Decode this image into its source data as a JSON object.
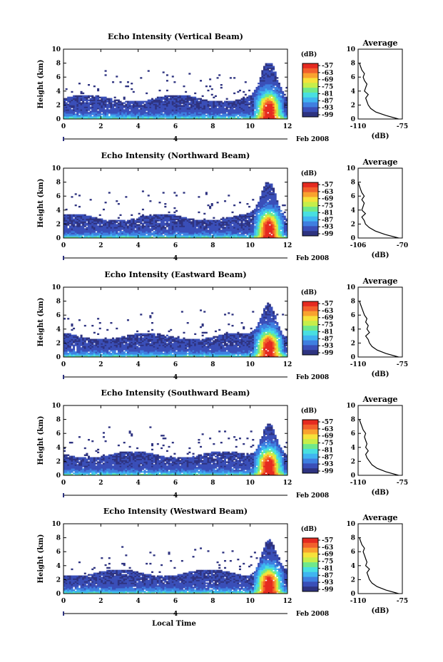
{
  "figure": {
    "xlabel": "Local Time",
    "date_label": "Feb 2008",
    "date_marker": "4"
  },
  "chart_data": [
    {
      "type": "heatmap",
      "title": "Echo Intensity (Vertical Beam)",
      "ylabel": "Height (km)",
      "xlim": [
        0,
        12
      ],
      "ylim": [
        0,
        10
      ],
      "xticks": [
        "0",
        "2",
        "4",
        "6",
        "8",
        "10",
        "12"
      ],
      "yticks": [
        "0",
        "2",
        "4",
        "6",
        "8",
        "10"
      ],
      "colorbar": {
        "label": "(dB)",
        "ticks": [
          "-57",
          "-63",
          "-69",
          "-75",
          "-81",
          "-87",
          "-93",
          "-99"
        ]
      },
      "average": {
        "title": "Average",
        "xlabel": "(dB)",
        "xticks": [
          "-110",
          "-75"
        ],
        "xlim": [
          -110,
          -75
        ],
        "yticks": [
          "0",
          "2",
          "4",
          "6",
          "8",
          "10"
        ],
        "profile": [
          [
            -78,
            0
          ],
          [
            -88,
            0.5
          ],
          [
            -96,
            1
          ],
          [
            -100,
            1.5
          ],
          [
            -102,
            2
          ],
          [
            -103,
            2.5
          ],
          [
            -104,
            3
          ],
          [
            -102,
            3.5
          ],
          [
            -105,
            4
          ],
          [
            -104,
            4.5
          ],
          [
            -103,
            5
          ],
          [
            -105,
            5.5
          ],
          [
            -106,
            6
          ],
          [
            -105,
            6.5
          ],
          [
            -107,
            7
          ],
          [
            -108,
            7.5
          ],
          [
            -109,
            8
          ]
        ]
      }
    },
    {
      "type": "heatmap",
      "title": "Echo Intensity (Northward Beam)",
      "ylabel": "Height (km)",
      "xlim": [
        0,
        12
      ],
      "ylim": [
        0,
        10
      ],
      "xticks": [
        "0",
        "2",
        "4",
        "6",
        "8",
        "10",
        "12"
      ],
      "yticks": [
        "0",
        "2",
        "4",
        "6",
        "8",
        "10"
      ],
      "colorbar": {
        "label": "(dB)",
        "ticks": [
          "-57",
          "-63",
          "-69",
          "-75",
          "-81",
          "-87",
          "-93",
          "-99"
        ]
      },
      "average": {
        "title": "Average",
        "xlabel": "(dB)",
        "xticks": [
          "-106",
          "-70"
        ],
        "xlim": [
          -106,
          -70
        ],
        "yticks": [
          "0",
          "2",
          "4",
          "6",
          "8",
          "10"
        ],
        "profile": [
          [
            -73,
            0
          ],
          [
            -84,
            0.5
          ],
          [
            -92,
            1
          ],
          [
            -97,
            1.5
          ],
          [
            -100,
            2
          ],
          [
            -101,
            2.5
          ],
          [
            -103,
            3
          ],
          [
            -100,
            3.5
          ],
          [
            -103,
            4
          ],
          [
            -102,
            4.5
          ],
          [
            -101,
            5
          ],
          [
            -103,
            5.5
          ],
          [
            -101,
            6
          ],
          [
            -103,
            6.5
          ],
          [
            -104,
            7
          ],
          [
            -105,
            7.5
          ],
          [
            -106,
            8
          ]
        ]
      }
    },
    {
      "type": "heatmap",
      "title": "Echo Intensity (Eastward Beam)",
      "ylabel": "Height (km)",
      "xlim": [
        0,
        12
      ],
      "ylim": [
        0,
        10
      ],
      "xticks": [
        "0",
        "2",
        "4",
        "6",
        "8",
        "10",
        "12"
      ],
      "yticks": [
        "0",
        "2",
        "4",
        "6",
        "8",
        "10"
      ],
      "colorbar": {
        "label": "(dB)",
        "ticks": [
          "-57",
          "-63",
          "-69",
          "-75",
          "-81",
          "-87",
          "-93",
          "-99"
        ]
      },
      "average": {
        "title": "Average",
        "xlabel": "(dB)",
        "xticks": [
          "-110",
          "-75"
        ],
        "xlim": [
          -110,
          -75
        ],
        "yticks": [
          "0",
          "2",
          "4",
          "6",
          "8",
          "10"
        ],
        "profile": [
          [
            -78,
            0
          ],
          [
            -88,
            0.5
          ],
          [
            -95,
            1
          ],
          [
            -99,
            1.5
          ],
          [
            -101,
            2
          ],
          [
            -102,
            2.5
          ],
          [
            -104,
            3
          ],
          [
            -101,
            3.5
          ],
          [
            -103,
            4
          ],
          [
            -102,
            4.5
          ],
          [
            -104,
            5
          ],
          [
            -103,
            5.5
          ],
          [
            -105,
            6
          ],
          [
            -106,
            6.5
          ],
          [
            -107,
            7
          ],
          [
            -108,
            7.5
          ],
          [
            -109,
            8
          ]
        ]
      }
    },
    {
      "type": "heatmap",
      "title": "Echo Intensity (Southward Beam)",
      "ylabel": "Height (km)",
      "xlim": [
        0,
        12
      ],
      "ylim": [
        0,
        10
      ],
      "xticks": [
        "0",
        "2",
        "4",
        "6",
        "8",
        "10",
        "12"
      ],
      "yticks": [
        "0",
        "2",
        "4",
        "6",
        "8",
        "10"
      ],
      "colorbar": {
        "label": "(dB)",
        "ticks": [
          "-57",
          "-63",
          "-69",
          "-75",
          "-81",
          "-87",
          "-93",
          "-99"
        ]
      },
      "average": {
        "title": "Average",
        "xlabel": "(dB)",
        "xticks": [
          "-110",
          "-75"
        ],
        "xlim": [
          -110,
          -75
        ],
        "yticks": [
          "0",
          "2",
          "4",
          "6",
          "8",
          "10"
        ],
        "profile": [
          [
            -78,
            0
          ],
          [
            -88,
            0.5
          ],
          [
            -95,
            1
          ],
          [
            -99,
            1.5
          ],
          [
            -101,
            2
          ],
          [
            -103,
            2.5
          ],
          [
            -104,
            3
          ],
          [
            -102,
            3.5
          ],
          [
            -104,
            4
          ],
          [
            -103,
            4.5
          ],
          [
            -104,
            5
          ],
          [
            -105,
            5.5
          ],
          [
            -104,
            6
          ],
          [
            -106,
            6.5
          ],
          [
            -107,
            7
          ],
          [
            -108,
            7.5
          ],
          [
            -109,
            8
          ]
        ]
      }
    },
    {
      "type": "heatmap",
      "title": "Echo Intensity (Westward Beam)",
      "ylabel": "Height (km)",
      "xlim": [
        0,
        12
      ],
      "ylim": [
        0,
        10
      ],
      "xticks": [
        "0",
        "2",
        "4",
        "6",
        "8",
        "10",
        "12"
      ],
      "yticks": [
        "0",
        "2",
        "4",
        "6",
        "8",
        "10"
      ],
      "colorbar": {
        "label": "(dB)",
        "ticks": [
          "-57",
          "-63",
          "-69",
          "-75",
          "-81",
          "-87",
          "-93",
          "-99"
        ]
      },
      "average": {
        "title": "Average",
        "xlabel": "(dB)",
        "xticks": [
          "-110",
          "-75"
        ],
        "xlim": [
          -110,
          -75
        ],
        "yticks": [
          "0",
          "2",
          "4",
          "6",
          "8",
          "10"
        ],
        "profile": [
          [
            -78,
            0
          ],
          [
            -88,
            0.5
          ],
          [
            -95,
            1
          ],
          [
            -99,
            1.5
          ],
          [
            -101,
            2
          ],
          [
            -102,
            2.5
          ],
          [
            -103,
            3
          ],
          [
            -101,
            3.5
          ],
          [
            -104,
            4
          ],
          [
            -103,
            4.5
          ],
          [
            -104,
            5
          ],
          [
            -105,
            5.5
          ],
          [
            -106,
            6
          ],
          [
            -105,
            6.5
          ],
          [
            -107,
            7
          ],
          [
            -108,
            7.5
          ],
          [
            -109,
            8
          ]
        ]
      }
    }
  ]
}
